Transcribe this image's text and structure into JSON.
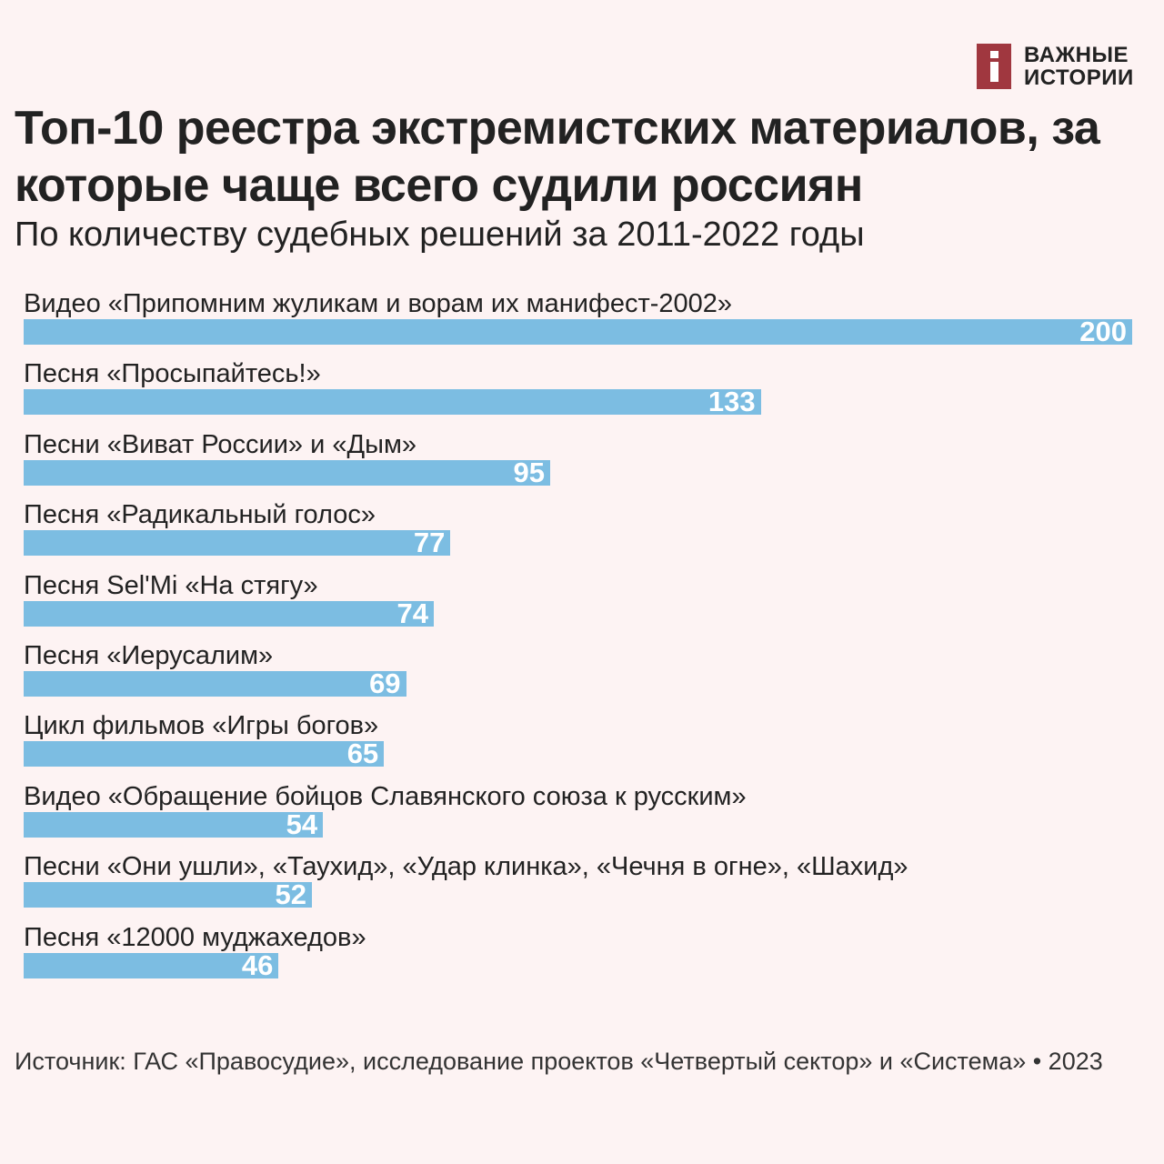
{
  "logo": {
    "line1": "ВАЖНЫЕ",
    "line2": "ИСТОРИИ",
    "color": "#a0373f"
  },
  "chart_data": {
    "type": "bar",
    "orientation": "horizontal",
    "title": "Топ-10 реестра экстремистских материалов, за которые чаще всего судили россиян",
    "subtitle": "По количеству судебных решений за 2011-2022 годы",
    "categories": [
      "Видео «Припомним жуликам и ворам их манифест-2002»",
      "Песня «Просыпайтесь!»",
      "Песни «Виват России» и «Дым»",
      "Песня «Радикальный голос»",
      "Песня Sel'Mi «На стягу»",
      "Песня «Иерусалим»",
      "Цикл фильмов «Игры богов»",
      "Видео «Обращение бойцов Славянского союза к русским»",
      "Песни «Они ушли», «Таухид», «Удар клинка», «Чечня в огне», «Шахид»",
      "Песня «12000 муджахедов»"
    ],
    "values": [
      200,
      133,
      95,
      77,
      74,
      69,
      65,
      54,
      52,
      46
    ],
    "xlim": [
      0,
      200
    ],
    "bar_color": "#7cbde2",
    "xlabel": "",
    "ylabel": ""
  },
  "source": "Источник: ГАС «Правосудие», исследование проектов «Четвертый сектор» и «Система» • 2023"
}
